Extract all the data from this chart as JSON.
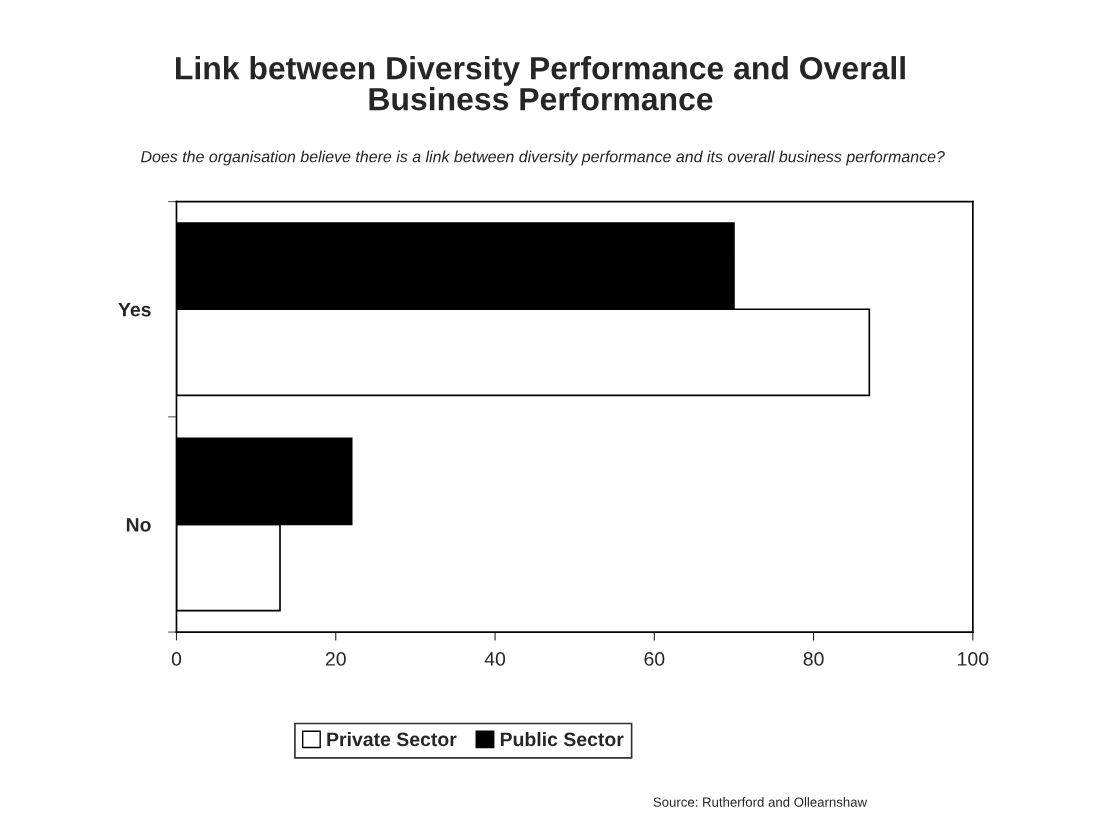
{
  "chart_data": {
    "type": "bar",
    "orientation": "horizontal",
    "title": "Link between Diversity Performance and Overall\nBusiness Performance",
    "subtitle": "Does the organisation believe there is a link between diversity performance and its overall business performance?",
    "categories": [
      "Yes",
      "No"
    ],
    "series": [
      {
        "name": "Private Sector",
        "color": "#ffffff",
        "values": [
          87,
          13
        ]
      },
      {
        "name": "Public Sector",
        "color": "#000000",
        "values": [
          70,
          22
        ]
      }
    ],
    "xlim": [
      0,
      100
    ],
    "xticks": [
      0,
      20,
      40,
      60,
      80,
      100
    ],
    "grid": false,
    "legend": "bottom",
    "annotations": [
      "Source: Rutherford and Ollearnshaw"
    ]
  }
}
